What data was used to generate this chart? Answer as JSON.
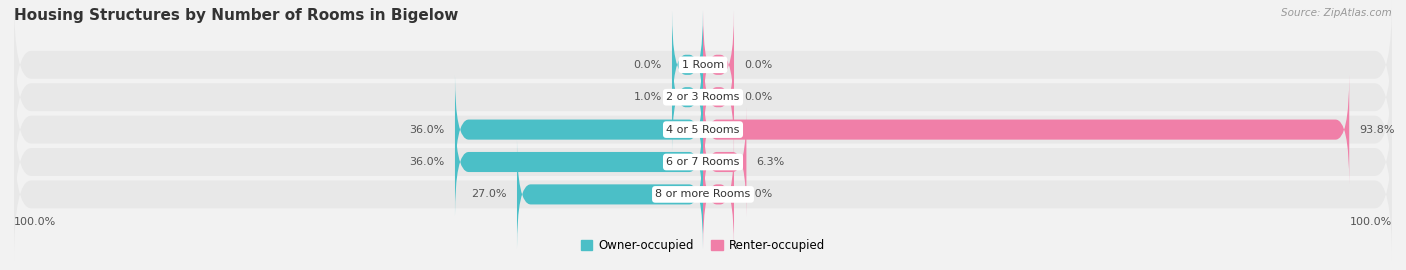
{
  "title": "Housing Structures by Number of Rooms in Bigelow",
  "source": "Source: ZipAtlas.com",
  "categories": [
    "1 Room",
    "2 or 3 Rooms",
    "4 or 5 Rooms",
    "6 or 7 Rooms",
    "8 or more Rooms"
  ],
  "owner_values": [
    0.0,
    1.0,
    36.0,
    36.0,
    27.0
  ],
  "renter_values": [
    0.0,
    0.0,
    93.8,
    6.3,
    0.0
  ],
  "owner_color": "#4BBFC7",
  "renter_color": "#F07FA8",
  "owner_label": "Owner-occupied",
  "renter_label": "Renter-occupied",
  "bg_color": "#f2f2f2",
  "bar_bg_color": "#e2e2e2",
  "row_bg_color": "#e8e8e8",
  "max_val": 100.0,
  "left_axis_label": "100.0%",
  "right_axis_label": "100.0%",
  "title_fontsize": 11,
  "label_fontsize": 8.5,
  "bar_height": 0.62,
  "min_bar_width": 4.5
}
